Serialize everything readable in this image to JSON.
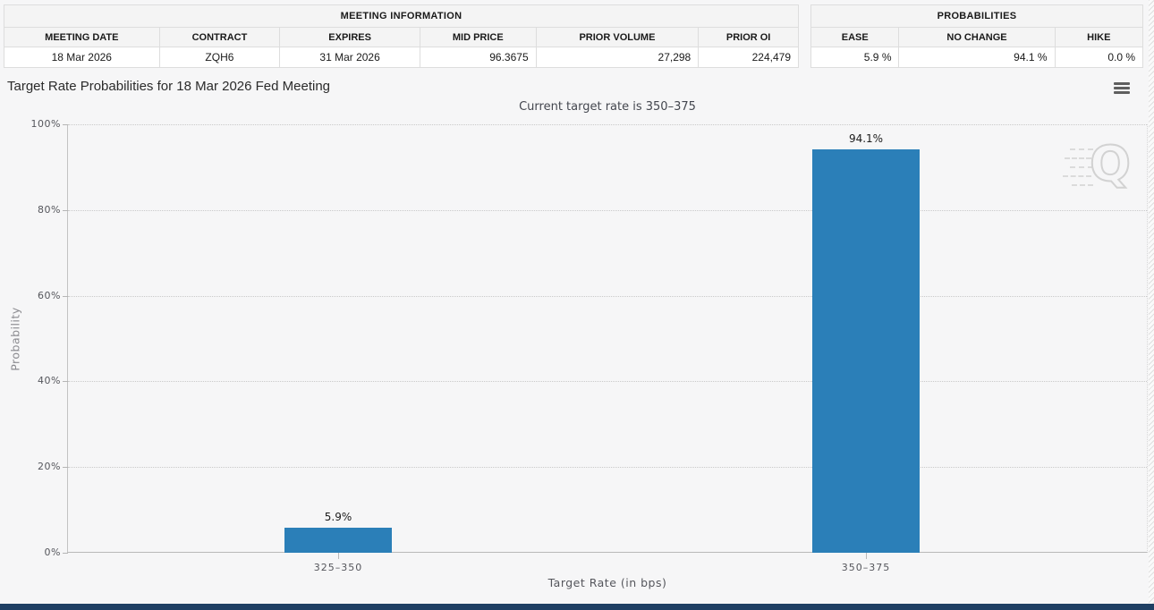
{
  "meeting_information": {
    "title": "MEETING INFORMATION",
    "columns": [
      "MEETING DATE",
      "CONTRACT",
      "EXPIRES",
      "MID PRICE",
      "PRIOR VOLUME",
      "PRIOR OI"
    ],
    "row": [
      "18 Mar 2026",
      "ZQH6",
      "31 Mar 2026",
      "96.3675",
      "27,298",
      "224,479"
    ]
  },
  "probabilities_table": {
    "title": "PROBABILITIES",
    "columns": [
      "EASE",
      "NO CHANGE",
      "HIKE"
    ],
    "row": [
      "5.9 %",
      "94.1 %",
      "0.0 %"
    ]
  },
  "chart": {
    "title": "Target Rate Probabilities for 18 Mar 2026 Fed Meeting",
    "subtitle": "Current target rate is 350–375",
    "menu_icon": "hamburger-menu-icon",
    "watermark_letter": "Q"
  },
  "chart_data": {
    "type": "bar",
    "categories": [
      "325–350",
      "350–375"
    ],
    "values": [
      5.9,
      94.1
    ],
    "value_labels": [
      "5.9%",
      "94.1%"
    ],
    "title": "Target Rate Probabilities for 18 Mar 2026 Fed Meeting",
    "subtitle": "Current target rate is 350–375",
    "xlabel": "Target Rate (in bps)",
    "ylabel": "Probability",
    "ylim": [
      0,
      100
    ],
    "yticks": [
      "0%",
      "20%",
      "40%",
      "60%",
      "80%",
      "100%"
    ],
    "grid": true,
    "legend": "none",
    "bar_color": "#2b7fb8"
  },
  "colors": {
    "bar": "#2b7fb8",
    "page_background": "#f6f6f7",
    "table_header_bg": "#f4f4f4",
    "footer_bar": "#1f3f63",
    "grid": "#c9c9c9"
  }
}
